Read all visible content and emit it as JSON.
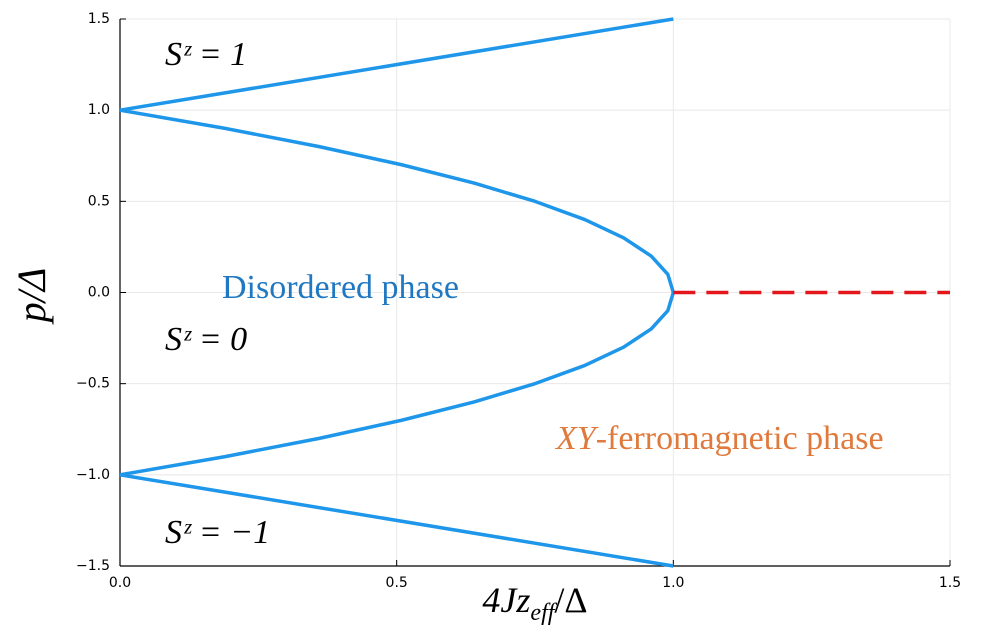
{
  "chart_data": {
    "type": "line",
    "x_label": {
      "main": "4Jz",
      "sub": "eff",
      "tail": "/Δ"
    },
    "y_label": "p/Δ",
    "xlim": [
      0,
      1.5
    ],
    "ylim": [
      -1.5,
      1.5
    ],
    "xticks": [
      {
        "value": 0,
        "label": "0.0"
      },
      {
        "value": 0.5,
        "label": "0.5"
      },
      {
        "value": 1,
        "label": "1.0"
      },
      {
        "value": 1.5,
        "label": "1.5"
      }
    ],
    "yticks": [
      {
        "value": -1.5,
        "label": "−1.5"
      },
      {
        "value": -1,
        "label": "−1.0"
      },
      {
        "value": -0.5,
        "label": "−0.5"
      },
      {
        "value": 0,
        "label": "0.0"
      },
      {
        "value": 0.5,
        "label": "0.5"
      },
      {
        "value": 1,
        "label": "1.0"
      },
      {
        "value": 1.5,
        "label": "1.5"
      }
    ],
    "grid": true,
    "series": [
      {
        "color": "#1e96ea",
        "line_style": "solid",
        "x": [
          0,
          1
        ],
        "values": [
          1,
          1.5
        ]
      },
      {
        "color": "#1e96ea",
        "line_style": "solid",
        "x": [
          0,
          1
        ],
        "values": [
          -1,
          -1.5
        ]
      },
      {
        "color": "#1e96ea",
        "line_style": "solid",
        "x": [
          0,
          0.19,
          0.36,
          0.51,
          0.64,
          0.75,
          0.84,
          0.91,
          0.96,
          0.99,
          1,
          0.99,
          0.96,
          0.91,
          0.84,
          0.75,
          0.64,
          0.51,
          0.36,
          0.19,
          0
        ],
        "values": [
          1,
          0.9,
          0.8,
          0.7,
          0.6,
          0.5,
          0.4,
          0.3,
          0.2,
          0.1,
          0,
          -0.1,
          -0.2,
          -0.3,
          -0.4,
          -0.5,
          -0.6,
          -0.7,
          -0.8,
          -0.9,
          -1
        ]
      },
      {
        "color": "#e3161c",
        "line_style": "dashed",
        "x": [
          1,
          1.5
        ],
        "values": [
          0,
          0
        ]
      }
    ],
    "annotations": [
      {
        "text": "Sᶻ = 1",
        "color": "#000000"
      },
      {
        "text": "Disordered phase",
        "color": "#1f78c1"
      },
      {
        "text": "Sᶻ = 0",
        "color": "#000000"
      },
      {
        "italic": "XY",
        "text": "-ferromagnetic phase",
        "color": "#e07a3c"
      },
      {
        "text": "Sᶻ = −1",
        "color": "#000000"
      }
    ]
  }
}
